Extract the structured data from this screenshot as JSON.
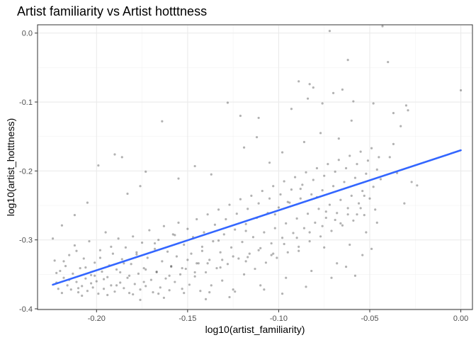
{
  "chart_data": {
    "type": "scatter",
    "title": "Artist familiarity vs Artist hotttness",
    "xlabel": "log10(artist_familiarity)",
    "ylabel": "log10(artist_hotttness)",
    "xlim": [
      -0.232,
      0.006
    ],
    "ylim": [
      -0.4,
      0.011
    ],
    "x_ticks": [
      -0.2,
      -0.15,
      -0.1,
      -0.05,
      0.0
    ],
    "x_tick_labels": [
      "-0.20",
      "-0.15",
      "-0.10",
      "-0.05",
      "0.00"
    ],
    "y_ticks": [
      -0.4,
      -0.3,
      -0.2,
      -0.1,
      0.0
    ],
    "y_tick_labels": [
      "-0.4",
      "-0.3",
      "-0.2",
      "-0.1",
      "0.0"
    ],
    "grid": true,
    "point_color": "#000000",
    "point_opacity": 0.3,
    "trend_line": {
      "x": [
        -0.224,
        0.0
      ],
      "y": [
        -0.365,
        -0.17
      ],
      "color": "#3366ff"
    },
    "points": [
      [
        -0.224,
        -0.298
      ],
      [
        -0.223,
        -0.33
      ],
      [
        -0.222,
        -0.362
      ],
      [
        -0.221,
        -0.371
      ],
      [
        -0.22,
        -0.345
      ],
      [
        -0.219,
        -0.377
      ],
      [
        -0.218,
        -0.355
      ],
      [
        -0.217,
        -0.338
      ],
      [
        -0.216,
        -0.366
      ],
      [
        -0.215,
        -0.322
      ],
      [
        -0.214,
        -0.372
      ],
      [
        -0.213,
        -0.349
      ],
      [
        -0.212,
        -0.308
      ],
      [
        -0.211,
        -0.361
      ],
      [
        -0.21,
        -0.376
      ],
      [
        -0.209,
        -0.341
      ],
      [
        -0.208,
        -0.367
      ],
      [
        -0.207,
        -0.327
      ],
      [
        -0.206,
        -0.356
      ],
      [
        -0.205,
        -0.374
      ],
      [
        -0.204,
        -0.302
      ],
      [
        -0.203,
        -0.351
      ],
      [
        -0.202,
        -0.369
      ],
      [
        -0.201,
        -0.333
      ],
      [
        -0.2,
        -0.36
      ],
      [
        -0.199,
        -0.378
      ],
      [
        -0.198,
        -0.315
      ],
      [
        -0.197,
        -0.346
      ],
      [
        -0.196,
        -0.371
      ],
      [
        -0.195,
        -0.289
      ],
      [
        -0.194,
        -0.354
      ],
      [
        -0.193,
        -0.337
      ],
      [
        -0.192,
        -0.366
      ],
      [
        -0.191,
        -0.32
      ],
      [
        -0.19,
        -0.375
      ],
      [
        -0.189,
        -0.343
      ],
      [
        -0.188,
        -0.298
      ],
      [
        -0.187,
        -0.362
      ],
      [
        -0.186,
        -0.328
      ],
      [
        -0.185,
        -0.37
      ],
      [
        -0.184,
        -0.311
      ],
      [
        -0.183,
        -0.355
      ],
      [
        -0.182,
        -0.377
      ],
      [
        -0.181,
        -0.335
      ],
      [
        -0.18,
        -0.295
      ],
      [
        -0.179,
        -0.364
      ],
      [
        -0.178,
        -0.318
      ],
      [
        -0.177,
        -0.349
      ],
      [
        -0.176,
        -0.372
      ],
      [
        -0.175,
        -0.304
      ],
      [
        -0.174,
        -0.341
      ],
      [
        -0.173,
        -0.367
      ],
      [
        -0.172,
        -0.326
      ],
      [
        -0.171,
        -0.286
      ],
      [
        -0.17,
        -0.358
      ],
      [
        -0.169,
        -0.376
      ],
      [
        -0.168,
        -0.313
      ],
      [
        -0.167,
        -0.347
      ],
      [
        -0.166,
        -0.3
      ],
      [
        -0.165,
        -0.369
      ],
      [
        -0.164,
        -0.331
      ],
      [
        -0.163,
        -0.28
      ],
      [
        -0.162,
        -0.356
      ],
      [
        -0.161,
        -0.317
      ],
      [
        -0.16,
        -0.373
      ],
      [
        -0.159,
        -0.339
      ],
      [
        -0.158,
        -0.292
      ],
      [
        -0.157,
        -0.361
      ],
      [
        -0.156,
        -0.324
      ],
      [
        -0.155,
        -0.275
      ],
      [
        -0.154,
        -0.35
      ],
      [
        -0.153,
        -0.371
      ],
      [
        -0.152,
        -0.307
      ],
      [
        -0.151,
        -0.342
      ],
      [
        -0.15,
        -0.284
      ],
      [
        -0.149,
        -0.365
      ],
      [
        -0.148,
        -0.32
      ],
      [
        -0.147,
        -0.296
      ],
      [
        -0.146,
        -0.353
      ],
      [
        -0.145,
        -0.27
      ],
      [
        -0.144,
        -0.334
      ],
      [
        -0.143,
        -0.374
      ],
      [
        -0.142,
        -0.31
      ],
      [
        -0.141,
        -0.289
      ],
      [
        -0.14,
        -0.347
      ],
      [
        -0.139,
        -0.263
      ],
      [
        -0.138,
        -0.329
      ],
      [
        -0.137,
        -0.366
      ],
      [
        -0.136,
        -0.302
      ],
      [
        -0.135,
        -0.278
      ],
      [
        -0.134,
        -0.341
      ],
      [
        -0.133,
        -0.256
      ],
      [
        -0.132,
        -0.318
      ],
      [
        -0.131,
        -0.359
      ],
      [
        -0.13,
        -0.292
      ],
      [
        -0.129,
        -0.27
      ],
      [
        -0.128,
        -0.335
      ],
      [
        -0.127,
        -0.249
      ],
      [
        -0.126,
        -0.311
      ],
      [
        -0.125,
        -0.372
      ],
      [
        -0.124,
        -0.285
      ],
      [
        -0.123,
        -0.262
      ],
      [
        -0.122,
        -0.327
      ],
      [
        -0.121,
        -0.241
      ],
      [
        -0.12,
        -0.303
      ],
      [
        -0.119,
        -0.35
      ],
      [
        -0.118,
        -0.277
      ],
      [
        -0.117,
        -0.255
      ],
      [
        -0.116,
        -0.32
      ],
      [
        -0.115,
        -0.236
      ],
      [
        -0.114,
        -0.296
      ],
      [
        -0.113,
        -0.342
      ],
      [
        -0.112,
        -0.268
      ],
      [
        -0.111,
        -0.247
      ],
      [
        -0.11,
        -0.312
      ],
      [
        -0.109,
        -0.229
      ],
      [
        -0.108,
        -0.289
      ],
      [
        -0.107,
        -0.333
      ],
      [
        -0.106,
        -0.261
      ],
      [
        -0.105,
        -0.24
      ],
      [
        -0.104,
        -0.305
      ],
      [
        -0.103,
        -0.222
      ],
      [
        -0.102,
        -0.283
      ],
      [
        -0.101,
        -0.326
      ],
      [
        -0.1,
        -0.253
      ],
      [
        -0.099,
        -0.234
      ],
      [
        -0.098,
        -0.297
      ],
      [
        -0.097,
        -0.215
      ],
      [
        -0.096,
        -0.276
      ],
      [
        -0.095,
        -0.318
      ],
      [
        -0.094,
        -0.246
      ],
      [
        -0.093,
        -0.227
      ],
      [
        -0.092,
        -0.29
      ],
      [
        -0.091,
        -0.209
      ],
      [
        -0.09,
        -0.269
      ],
      [
        -0.089,
        -0.31
      ],
      [
        -0.088,
        -0.24
      ],
      [
        -0.087,
        -0.22
      ],
      [
        -0.086,
        -0.283
      ],
      [
        -0.085,
        -0.202
      ],
      [
        -0.084,
        -0.262
      ],
      [
        -0.083,
        -0.302
      ],
      [
        -0.082,
        -0.234
      ],
      [
        -0.081,
        -0.213
      ],
      [
        -0.08,
        -0.275
      ],
      [
        -0.079,
        -0.196
      ],
      [
        -0.078,
        -0.255
      ],
      [
        -0.077,
        -0.295
      ],
      [
        -0.076,
        -0.228
      ],
      [
        -0.075,
        -0.207
      ],
      [
        -0.074,
        -0.268
      ],
      [
        -0.073,
        -0.19
      ],
      [
        -0.072,
        -0.249
      ],
      [
        -0.071,
        -0.287
      ],
      [
        -0.07,
        -0.222
      ],
      [
        -0.069,
        -0.201
      ],
      [
        -0.068,
        -0.261
      ],
      [
        -0.067,
        -0.184
      ],
      [
        -0.066,
        -0.242
      ],
      [
        -0.065,
        -0.279
      ],
      [
        -0.064,
        -0.216
      ],
      [
        -0.063,
        -0.196
      ],
      [
        -0.062,
        -0.254
      ],
      [
        -0.061,
        -0.178
      ],
      [
        -0.06,
        -0.236
      ],
      [
        -0.059,
        -0.272
      ],
      [
        -0.058,
        -0.21
      ],
      [
        -0.057,
        -0.19
      ],
      [
        -0.056,
        -0.247
      ],
      [
        -0.055,
        -0.172
      ],
      [
        -0.054,
        -0.229
      ],
      [
        -0.053,
        -0.264
      ],
      [
        -0.052,
        -0.204
      ],
      [
        -0.051,
        -0.185
      ],
      [
        -0.05,
        -0.24
      ],
      [
        -0.049,
        -0.167
      ],
      [
        -0.048,
        -0.223
      ],
      [
        -0.047,
        -0.256
      ],
      [
        -0.046,
        -0.198
      ],
      [
        -0.045,
        -0.18
      ],
      [
        -0.215,
        -0.358
      ],
      [
        -0.208,
        -0.381
      ],
      [
        -0.201,
        -0.352
      ],
      [
        -0.194,
        -0.38
      ],
      [
        -0.187,
        -0.347
      ],
      [
        -0.18,
        -0.379
      ],
      [
        -0.173,
        -0.343
      ],
      [
        -0.166,
        -0.378
      ],
      [
        -0.159,
        -0.338
      ],
      [
        -0.152,
        -0.377
      ],
      [
        -0.145,
        -0.334
      ],
      [
        -0.138,
        -0.376
      ],
      [
        -0.131,
        -0.329
      ],
      [
        -0.124,
        -0.375
      ],
      [
        -0.117,
        -0.325
      ],
      [
        -0.11,
        -0.366
      ],
      [
        -0.103,
        -0.32
      ],
      [
        -0.096,
        -0.355
      ],
      [
        -0.089,
        -0.316
      ],
      [
        -0.082,
        -0.345
      ],
      [
        -0.075,
        -0.311
      ],
      [
        -0.068,
        -0.334
      ],
      [
        -0.061,
        -0.307
      ],
      [
        -0.054,
        -0.322
      ],
      [
        -0.19,
        -0.176
      ],
      [
        -0.186,
        -0.18
      ],
      [
        -0.199,
        -0.192
      ],
      [
        -0.164,
        -0.128
      ],
      [
        -0.173,
        -0.201
      ],
      [
        -0.128,
        -0.101
      ],
      [
        -0.121,
        -0.12
      ],
      [
        -0.111,
        -0.123
      ],
      [
        -0.089,
        -0.07
      ],
      [
        -0.083,
        -0.074
      ],
      [
        -0.081,
        -0.079
      ],
      [
        -0.072,
        0.003
      ],
      [
        -0.062,
        -0.039
      ],
      [
        -0.07,
        -0.087
      ],
      [
        -0.065,
        -0.082
      ],
      [
        -0.059,
        -0.099
      ],
      [
        -0.076,
        -0.102
      ],
      [
        -0.084,
        -0.095
      ],
      [
        -0.093,
        -0.11
      ],
      [
        -0.06,
        -0.127
      ],
      [
        -0.048,
        -0.102
      ],
      [
        -0.043,
        0.01
      ],
      [
        -0.04,
        -0.042
      ],
      [
        -0.037,
        -0.116
      ],
      [
        -0.033,
        -0.135
      ],
      [
        -0.03,
        -0.105
      ],
      [
        -0.029,
        -0.112
      ],
      [
        -0.037,
        -0.161
      ],
      [
        -0.035,
        -0.203
      ],
      [
        -0.039,
        -0.18
      ],
      [
        -0.031,
        -0.247
      ],
      [
        -0.027,
        -0.216
      ],
      [
        -0.024,
        -0.221
      ],
      [
        -0.052,
        -0.289
      ],
      [
        -0.049,
        -0.313
      ],
      [
        -0.058,
        -0.352
      ],
      [
        -0.046,
        -0.275
      ],
      [
        0.0,
        -0.083
      ],
      [
        -0.067,
        -0.153
      ],
      [
        -0.077,
        -0.145
      ],
      [
        -0.086,
        -0.158
      ],
      [
        -0.098,
        -0.173
      ],
      [
        -0.105,
        -0.188
      ],
      [
        -0.112,
        -0.151
      ],
      [
        -0.119,
        -0.166
      ],
      [
        -0.137,
        -0.205
      ],
      [
        -0.146,
        -0.193
      ],
      [
        -0.155,
        -0.211
      ],
      [
        -0.176,
        -0.222
      ],
      [
        -0.183,
        -0.233
      ],
      [
        -0.205,
        -0.246
      ],
      [
        -0.212,
        -0.264
      ],
      [
        -0.219,
        -0.279
      ],
      [
        -0.14,
        -0.386
      ],
      [
        -0.127,
        -0.383
      ],
      [
        -0.098,
        -0.378
      ],
      [
        -0.163,
        -0.384
      ],
      [
        -0.176,
        -0.387
      ],
      [
        -0.108,
        -0.372
      ],
      [
        -0.085,
        -0.368
      ],
      [
        -0.071,
        -0.355
      ],
      [
        -0.063,
        -0.339
      ],
      [
        -0.102,
        -0.263
      ],
      [
        -0.095,
        -0.245
      ],
      [
        -0.088,
        -0.226
      ],
      [
        -0.079,
        -0.238
      ],
      [
        -0.074,
        -0.259
      ],
      [
        -0.066,
        -0.276
      ],
      [
        -0.057,
        -0.263
      ],
      [
        -0.053,
        -0.236
      ],
      [
        -0.044,
        -0.212
      ],
      [
        -0.118,
        -0.287
      ],
      [
        -0.133,
        -0.301
      ],
      [
        -0.142,
        -0.316
      ],
      [
        -0.15,
        -0.329
      ],
      [
        -0.157,
        -0.293
      ],
      [
        -0.168,
        -0.305
      ],
      [
        -0.178,
        -0.321
      ],
      [
        -0.185,
        -0.334
      ],
      [
        -0.192,
        -0.31
      ],
      [
        -0.198,
        -0.326
      ],
      [
        -0.206,
        -0.34
      ],
      [
        -0.211,
        -0.316
      ],
      [
        -0.218,
        -0.331
      ],
      [
        -0.222,
        -0.348
      ],
      [
        -0.21,
        -0.37
      ],
      [
        -0.203,
        -0.363
      ],
      [
        -0.196,
        -0.357
      ],
      [
        -0.189,
        -0.366
      ],
      [
        -0.182,
        -0.352
      ],
      [
        -0.174,
        -0.361
      ],
      [
        -0.167,
        -0.346
      ],
      [
        -0.16,
        -0.352
      ],
      [
        -0.153,
        -0.341
      ],
      [
        -0.146,
        -0.347
      ],
      [
        -0.139,
        -0.334
      ],
      [
        -0.132,
        -0.34
      ],
      [
        -0.125,
        -0.324
      ],
      [
        -0.118,
        -0.331
      ],
      [
        -0.111,
        -0.315
      ],
      [
        -0.104,
        -0.322
      ],
      [
        -0.097,
        -0.306
      ],
      [
        -0.09,
        -0.297
      ],
      [
        -0.083,
        -0.289
      ],
      [
        -0.076,
        -0.28
      ],
      [
        -0.069,
        -0.271
      ],
      [
        -0.062,
        -0.263
      ],
      [
        -0.055,
        -0.254
      ]
    ]
  }
}
